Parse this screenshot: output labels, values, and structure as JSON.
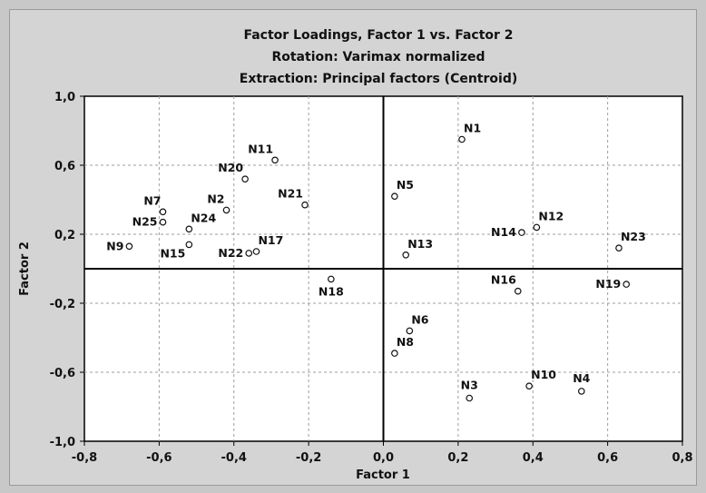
{
  "chart_data": {
    "type": "scatter",
    "title": [
      "Factor Loadings, Factor 1 vs. Factor 2",
      "Rotation: Varimax normalized",
      "Extraction: Principal factors (Centroid)"
    ],
    "xlabel": "Factor 1",
    "ylabel": "Factor 2",
    "xlim": [
      -0.8,
      0.8
    ],
    "ylim": [
      -1.0,
      1.0
    ],
    "x_ticks": [
      "-0,8",
      "-0,6",
      "-0,4",
      "-0,2",
      "0,0",
      "0,2",
      "0,4",
      "0,6",
      "0,8"
    ],
    "x_tick_values": [
      -0.8,
      -0.6,
      -0.4,
      -0.2,
      0.0,
      0.2,
      0.4,
      0.6,
      0.8
    ],
    "y_ticks": [
      "1,0",
      "0,6",
      "0,2",
      "-0,2",
      "-0,6",
      "-1,0"
    ],
    "y_tick_values": [
      1.0,
      0.6,
      0.2,
      -0.2,
      -0.6,
      -1.0
    ],
    "grid": true,
    "points": [
      {
        "label": "N1",
        "x": 0.21,
        "y": 0.75
      },
      {
        "label": "N2",
        "x": -0.42,
        "y": 0.34
      },
      {
        "label": "N3",
        "x": 0.23,
        "y": -0.75
      },
      {
        "label": "N4",
        "x": 0.53,
        "y": -0.71
      },
      {
        "label": "N5",
        "x": 0.03,
        "y": 0.42
      },
      {
        "label": "N6",
        "x": 0.07,
        "y": -0.36
      },
      {
        "label": "N7",
        "x": -0.59,
        "y": 0.33
      },
      {
        "label": "N8",
        "x": 0.03,
        "y": -0.49
      },
      {
        "label": "N9",
        "x": -0.68,
        "y": 0.13
      },
      {
        "label": "N10",
        "x": 0.39,
        "y": -0.68
      },
      {
        "label": "N11",
        "x": -0.29,
        "y": 0.63
      },
      {
        "label": "N12",
        "x": 0.41,
        "y": 0.24
      },
      {
        "label": "N13",
        "x": 0.06,
        "y": 0.08
      },
      {
        "label": "N14",
        "x": 0.37,
        "y": 0.21
      },
      {
        "label": "N15",
        "x": -0.52,
        "y": 0.14
      },
      {
        "label": "N16",
        "x": 0.36,
        "y": -0.13
      },
      {
        "label": "N17",
        "x": -0.34,
        "y": 0.1
      },
      {
        "label": "N18",
        "x": -0.14,
        "y": -0.06
      },
      {
        "label": "N19",
        "x": 0.65,
        "y": -0.09
      },
      {
        "label": "N20",
        "x": -0.37,
        "y": 0.52
      },
      {
        "label": "N21",
        "x": -0.21,
        "y": 0.37
      },
      {
        "label": "N22",
        "x": -0.36,
        "y": 0.09
      },
      {
        "label": "N23",
        "x": 0.63,
        "y": 0.12
      },
      {
        "label": "N24",
        "x": -0.52,
        "y": 0.23
      },
      {
        "label": "N25",
        "x": -0.59,
        "y": 0.27
      }
    ]
  }
}
